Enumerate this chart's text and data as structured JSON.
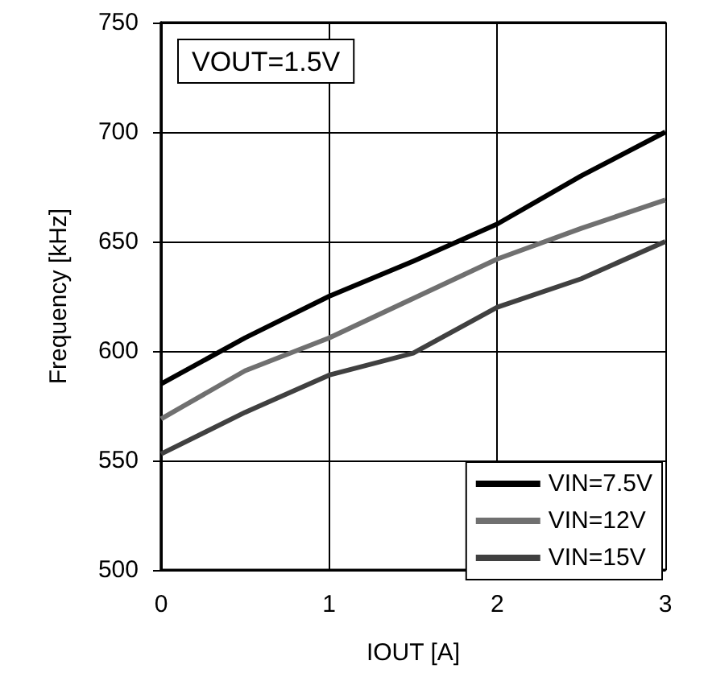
{
  "chart_data": {
    "type": "line",
    "xlabel": "IOUT [A]",
    "ylabel": "Frequency [kHz]",
    "annotations": [
      "VOUT=1.5V"
    ],
    "x": [
      0,
      0.5,
      1,
      1.5,
      2,
      2.5,
      3
    ],
    "series": [
      {
        "name": "VIN=7.5V",
        "color": "#000000",
        "values": [
          585,
          606,
          625,
          641,
          658,
          680,
          700
        ]
      },
      {
        "name": "VIN=12V",
        "color": "#707070",
        "values": [
          569,
          591,
          606,
          624,
          642,
          656,
          669
        ]
      },
      {
        "name": "VIN=15V",
        "color": "#404040",
        "values": [
          553,
          572,
          589,
          599,
          620,
          633,
          650
        ]
      }
    ],
    "xlim": [
      0,
      3
    ],
    "xticks": [
      0,
      1,
      2,
      3
    ],
    "ylim": [
      500,
      750
    ],
    "yticks": [
      500,
      550,
      600,
      650,
      700,
      750
    ],
    "grid": true,
    "legend": "bottom right",
    "marker": "none",
    "line_style": "solid"
  }
}
